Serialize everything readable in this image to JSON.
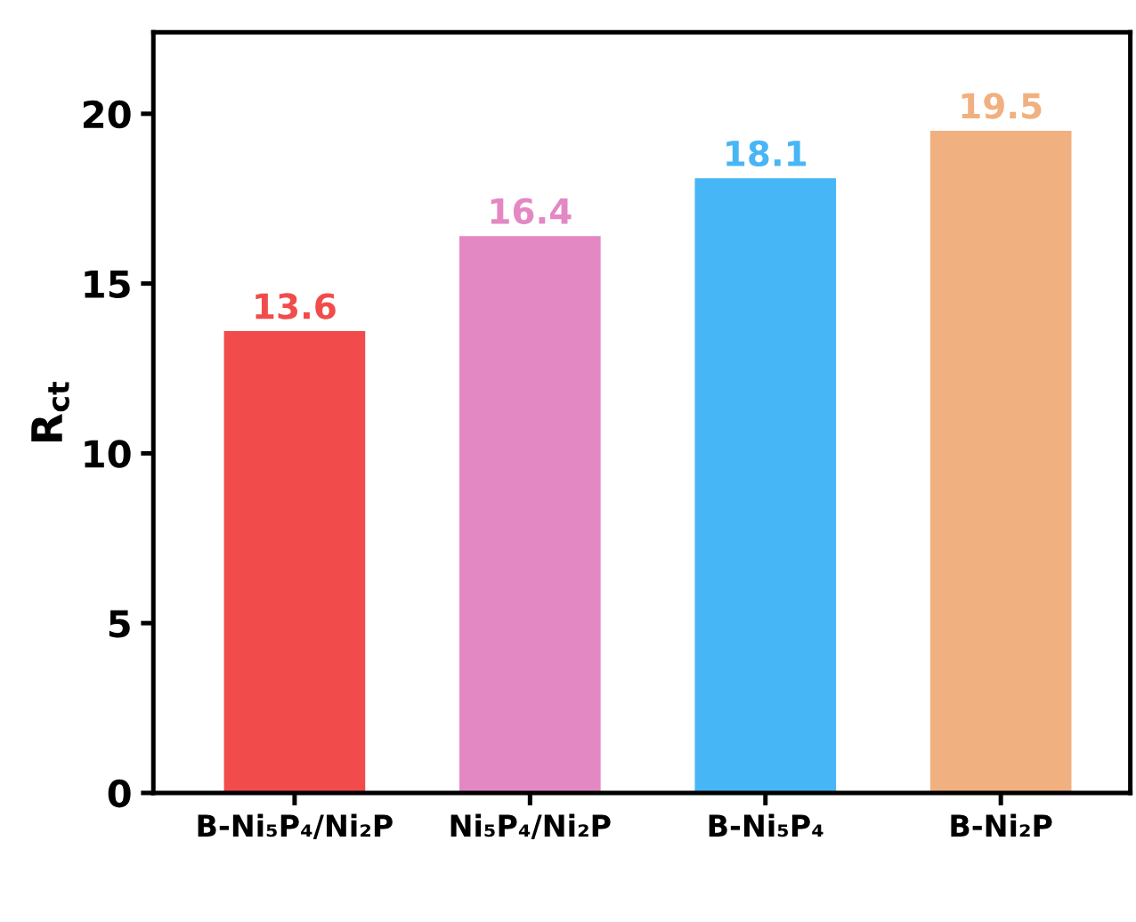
{
  "chart_data": {
    "type": "bar",
    "ylabel": "R$_{ct}$",
    "categories": [
      "B-Ni₅P₄/Ni₂P",
      "Ni₅P₄/Ni₂P",
      "B-Ni₅P₄",
      "B-Ni₂P"
    ],
    "values": [
      13.6,
      16.4,
      18.1,
      19.5
    ],
    "colors": [
      "#f24b4b",
      "#e488c4",
      "#47b6f6",
      "#f1b080"
    ],
    "ylim": [
      0,
      22.4
    ],
    "yticks": [
      0,
      5,
      10,
      15,
      20
    ],
    "data_labels": true,
    "grid": false,
    "legend": false
  }
}
